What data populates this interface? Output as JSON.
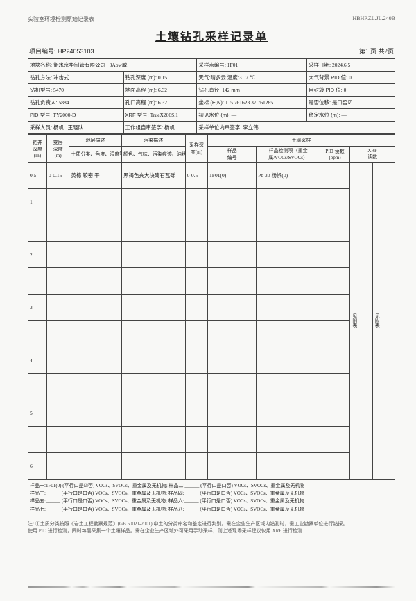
{
  "top": {
    "left": "实验室环境检测原始记录表",
    "right": "HBHP.ZL.JL.240B"
  },
  "title": "土壤钻孔采样记录单",
  "proj": {
    "label": "项目编号: ",
    "code": "HP24053103",
    "pageinfo_prefix": "第",
    "pageinfo_cur": "1",
    "pageinfo_mid": " 页 共",
    "pageinfo_total": "2",
    "pageinfo_suf": "页"
  },
  "hdr": {
    "r1": {
      "c1l": "地块名称:",
      "c1v": "衡水京华制管有限公司",
      "c2v": "3Abw威",
      "c3l": "采样点编号:",
      "c3v": "1F01",
      "c4l": "采样日期:",
      "c4v": "2024.6.5"
    },
    "r2": {
      "c1l": "钻孔方法:",
      "c1v": "冲击式",
      "c2l": "钻孔深度 (m):",
      "c2v": "0.15",
      "c3l": "天气:",
      "c3v": "晴多云",
      "c3l2": "温度:",
      "c3v2": "31.7 ℃",
      "c4l": "大气背景 PID 值:",
      "c4v": "0"
    },
    "r3": {
      "c1l": "钻机型号:",
      "c1v": "5470",
      "c2l": "地面高程 (m):",
      "c2v": "6.32",
      "c3l": "钻孔直径:",
      "c3v": "142",
      "c3u": "mm",
      "c4l": "自封袋 PID 值:",
      "c4v": "0"
    },
    "r4": {
      "c1l": "钻孔负责人:",
      "c1v": "5884",
      "c2l": "孔口高程 (m):",
      "c2v": "6.32",
      "c3l": "坐标 (E,N):",
      "c3v": "115.761623  37.761285",
      "c4l": "是否位移:",
      "c4v": "是口否☑"
    },
    "r5": {
      "c1l": "PID 型号:",
      "c1v": "TY2000-D",
      "c2l": "XRF 型号:",
      "c2v": "TrueX200S.1",
      "c3l": "初见水位 (m):",
      "c3v": "—",
      "c4l": "稳定水位 (m):",
      "c4v": "—"
    },
    "r6": {
      "c1l": "采样人员:",
      "c1v": "杨帆",
      "c1l2": "王晓队",
      "c2l": "工作组自审签字:",
      "c2v": "杨帆",
      "c3l": "采样单位内审签字:",
      "c3v": "李立伟"
    }
  },
  "cols": {
    "c1": "钻井",
    "c1s": "深度",
    "c1u": "(m)",
    "c2": "变层",
    "c2s": "深度",
    "c2u": "(m)",
    "c3": "地层描述",
    "c3s": "土质分类、色度、湿度等",
    "c4": "污染描述",
    "c4s": "颜色、气味、污染痕迹、油状物等",
    "c5": "采样深",
    "c5s": "度(m)",
    "c6": "土壤采样",
    "c6a": "样品",
    "c6as": "编号",
    "c6b": "样品检测项（重金",
    "c6bs": "属/VOCs/SVOCs）",
    "c6c": "PID 读数",
    "c6cs": "(ppm)",
    "c6d": "XRF",
    "c6ds": "读数"
  },
  "rows": [
    {
      "c1": "0.5",
      "c2": "0-0.15",
      "c3": "黄棕 较密 干",
      "c4": "黑褐色夹大块砖石瓦砾",
      "c5": "0-0.5",
      "c6a": "1F01(0)",
      "c6b": "Pb 30 杨帆(0)",
      "c6c": "",
      "c6d": ""
    },
    {
      "c1": "1",
      "c2": "",
      "c3": "",
      "c4": "",
      "c5": "",
      "c6a": "",
      "c6b": "",
      "c6c": "",
      "c6d": ""
    },
    {
      "c1": "",
      "c2": "",
      "c3": "",
      "c4": "",
      "c5": "",
      "c6a": "",
      "c6b": "",
      "c6c": "",
      "c6d": ""
    },
    {
      "c1": "2",
      "c2": "",
      "c3": "",
      "c4": "",
      "c5": "",
      "c6a": "",
      "c6b": "",
      "c6c": "",
      "c6d": ""
    },
    {
      "c1": "",
      "c2": "",
      "c3": "",
      "c4": "",
      "c5": "",
      "c6a": "",
      "c6b": "",
      "c6c": "",
      "c6d": ""
    },
    {
      "c1": "3",
      "c2": "",
      "c3": "",
      "c4": "",
      "c5": "",
      "c6a": "",
      "c6b": "",
      "c6c": "",
      "c6d": ""
    },
    {
      "c1": "",
      "c2": "",
      "c3": "",
      "c4": "",
      "c5": "",
      "c6a": "",
      "c6b": "",
      "c6c": "",
      "c6d": ""
    },
    {
      "c1": "4",
      "c2": "",
      "c3": "",
      "c4": "",
      "c5": "",
      "c6a": "",
      "c6b": "",
      "c6c": "",
      "c6d": ""
    },
    {
      "c1": "",
      "c2": "",
      "c3": "",
      "c4": "",
      "c5": "",
      "c6a": "",
      "c6b": "",
      "c6c": "",
      "c6d": ""
    },
    {
      "c1": "5",
      "c2": "",
      "c3": "",
      "c4": "",
      "c5": "",
      "c6a": "",
      "c6b": "",
      "c6c": "",
      "c6d": ""
    },
    {
      "c1": "",
      "c2": "",
      "c3": "",
      "c4": "",
      "c5": "",
      "c6a": "",
      "c6b": "",
      "c6c": "",
      "c6d": ""
    },
    {
      "c1": "6",
      "c2": "",
      "c3": "",
      "c4": "",
      "c5": "",
      "c6a": "",
      "c6b": "",
      "c6c": "",
      "c6d": ""
    }
  ],
  "attach": "见附表",
  "samples": {
    "l1": "样品一:",
    "l1v": "1F01(0)",
    "l1t": "(平行口是☑否) VOCs、SVOCs、重金属及无机物;",
    "l1b": "样品二:______ (平行口是口否) VOCs、SVOCs、重金属及无机物",
    "l2": "样品三:______ (平行口是口否) VOCs、SVOCs、重金属及无机物; 样品四:______ (平行口是口否) VOCs、SVOCs、重金属及无机物",
    "l3": "样品五:______ (平行口是口否) VOCs、SVOCs、重金属及无机物; 样品六:______ (平行口是口否) VOCs、SVOCs、重金属及无机物",
    "l4": "样品七:______ (平行口是口否) VOCs、SVOCs、重金属及无机物; 样品八:______ (平行口是口否) VOCs、SVOCs、重金属及无机物"
  },
  "foot": {
    "l1": "注: ①土质分类按照《岩土工程勘察规范》(GB 50021-2001) 中土的分类命名和鉴定进行判别。需在企业生产区域内钻孔时，需工业勘察单位进行钻探。",
    "l2": "使用 PID 进行检测，同时每层采集一个土壤样品。需在企业生产区域外可采用手动采样，则上述现场采样建议仅用 XRF 进行检测"
  }
}
